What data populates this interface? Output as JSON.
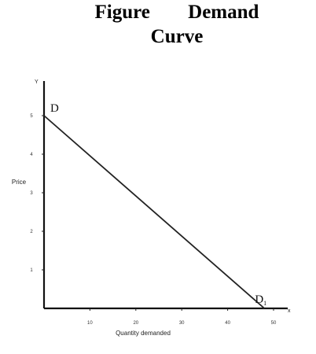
{
  "chart_data": {
    "type": "line",
    "title_words": [
      "Figure",
      "Demand",
      "Curve"
    ],
    "xlabel": "Quantity demanded",
    "ylabel": "Price",
    "x_axis_end_label": "x",
    "y_axis_end_label": "Y",
    "xlim": [
      0,
      50
    ],
    "ylim": [
      0,
      5
    ],
    "x_ticks": [
      10,
      20,
      30,
      40,
      50
    ],
    "y_ticks": [
      1,
      2,
      3,
      4,
      5
    ],
    "grid": false,
    "legend": "none",
    "series": [
      {
        "x": [
          0,
          48
        ],
        "y": [
          5,
          0
        ],
        "color": "#222222"
      }
    ],
    "annotations": [
      {
        "text": "D",
        "x": 0,
        "y": 5
      },
      {
        "text": "D",
        "sub": "1",
        "x": 48,
        "y": 0
      }
    ]
  }
}
